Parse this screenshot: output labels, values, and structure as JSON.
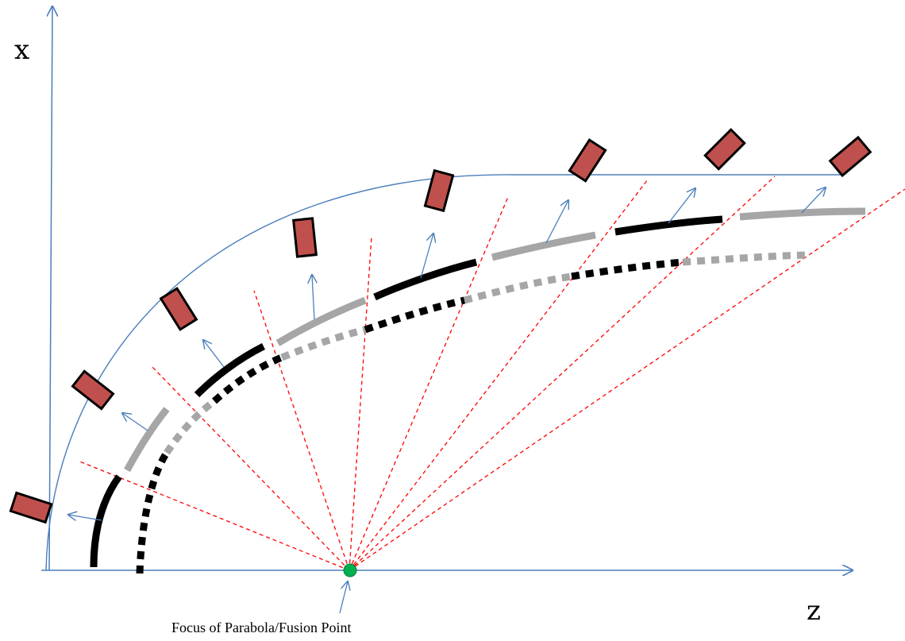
{
  "labels": {
    "x_axis": "x",
    "z_axis": "z",
    "focus": "Focus of Parabola/Fusion Point"
  },
  "colors": {
    "axis": "#4a7ebb",
    "outer_arc": "#4a7ebb",
    "rays": "#ff0000",
    "black_segment": "#000000",
    "gray_segment": "#a6a6a6",
    "mirror_fill": "#c0504d",
    "mirror_stroke": "#000000",
    "focus_point": "#00b050",
    "normal_arrows": "#4a7ebb"
  }
}
